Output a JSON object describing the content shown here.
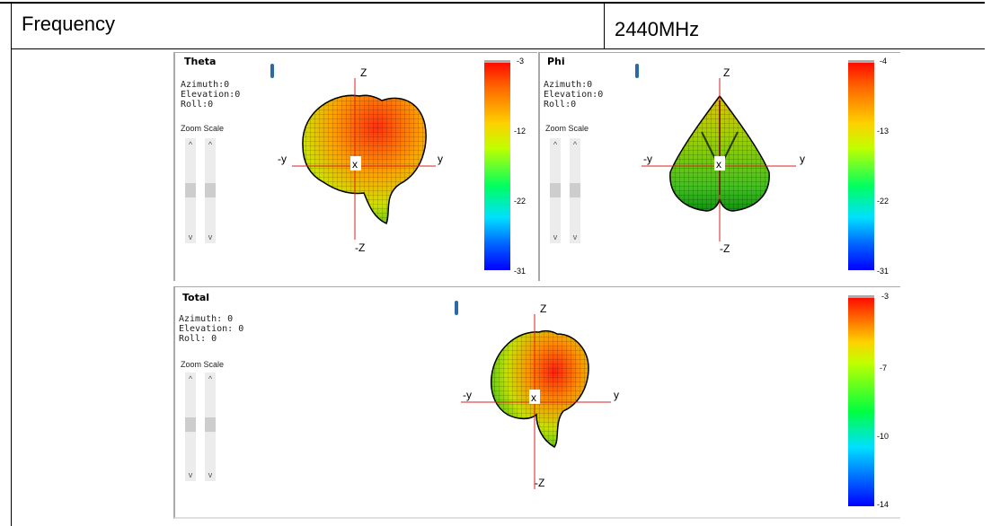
{
  "table": {
    "label": "Frequency",
    "value": "2440MHz"
  },
  "panels": {
    "theta": {
      "title": "Theta",
      "azimuth": "Azimuth:0",
      "elevation": "Elevation:0",
      "roll": "Roll:0",
      "zoom_label": "Zoom Scale",
      "axes": {
        "z": "Z",
        "nz": "-Z",
        "y": "y",
        "ny": "-y",
        "x": "x"
      },
      "colorbar_ticks": [
        "-3",
        "-12",
        "-22",
        "-31"
      ]
    },
    "phi": {
      "title": "Phi",
      "azimuth": "Azimuth:0",
      "elevation": "Elevation:0",
      "roll": "Roll:0",
      "zoom_label": "Zoom Scale",
      "axes": {
        "z": "Z",
        "nz": "-Z",
        "y": "y",
        "ny": "-y",
        "x": "x"
      },
      "colorbar_ticks": [
        "-4",
        "-13",
        "-22",
        "-31"
      ]
    },
    "total": {
      "title": "Total",
      "azimuth": "Azimuth: 0",
      "elevation": "Elevation: 0",
      "roll": "Roll: 0",
      "zoom_label": "Zoom Scale",
      "axes": {
        "z": "Z",
        "nz": "-Z",
        "y": "y",
        "ny": "-y",
        "x": "x"
      },
      "colorbar_ticks": [
        "-3",
        "-7",
        "-10",
        "-14"
      ]
    }
  },
  "scroll_up_glyph": "^",
  "scroll_down_glyph": "v",
  "colors": {
    "axis_line": "#d62020",
    "panel_border": "#a9a9a9",
    "marker": "#2a6aa8"
  }
}
